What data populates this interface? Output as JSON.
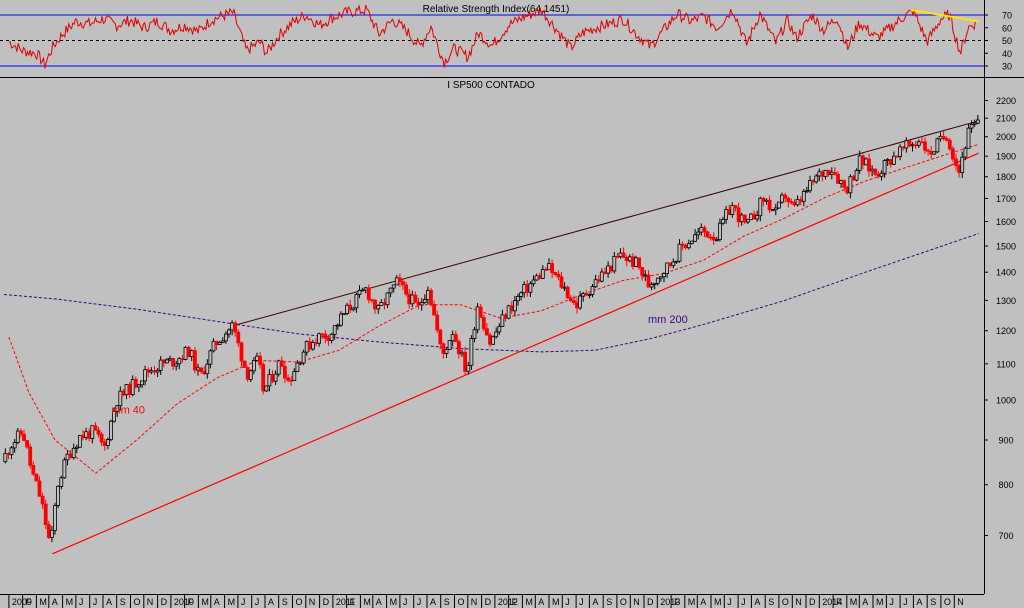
{
  "chart_data": [
    {
      "type": "line",
      "title": "Relative Strength Index(64.1451)",
      "ylim": [
        25,
        80
      ],
      "y_ticks": [
        30,
        40,
        50,
        60,
        70
      ],
      "upper_band": 70,
      "mid_band": 50,
      "lower_band": 30,
      "series": [
        {
          "values": [
            {
              "x": "2008-12-01",
              "y": 49
            },
            {
              "x": "2009-01-01",
              "y": 42
            },
            {
              "x": "2009-02-01",
              "y": 40
            },
            {
              "x": "2009-02-20",
              "y": 31
            },
            {
              "x": "2009-03-10",
              "y": 45
            },
            {
              "x": "2009-04-01",
              "y": 55
            },
            {
              "x": "2009-05-01",
              "y": 65
            },
            {
              "x": "2009-06-01",
              "y": 63
            },
            {
              "x": "2009-07-01",
              "y": 67
            },
            {
              "x": "2009-08-01",
              "y": 62
            },
            {
              "x": "2009-09-01",
              "y": 66
            },
            {
              "x": "2009-10-01",
              "y": 60
            },
            {
              "x": "2009-11-01",
              "y": 65
            },
            {
              "x": "2009-12-01",
              "y": 58
            },
            {
              "x": "2010-01-01",
              "y": 62
            },
            {
              "x": "2010-02-01",
              "y": 57
            },
            {
              "x": "2010-03-01",
              "y": 66
            },
            {
              "x": "2010-04-20",
              "y": 72
            },
            {
              "x": "2010-05-20",
              "y": 42
            },
            {
              "x": "2010-06-20",
              "y": 49
            },
            {
              "x": "2010-07-05",
              "y": 40
            },
            {
              "x": "2010-08-01",
              "y": 54
            },
            {
              "x": "2010-09-01",
              "y": 64
            },
            {
              "x": "2010-10-01",
              "y": 70
            },
            {
              "x": "2010-11-01",
              "y": 62
            },
            {
              "x": "2010-12-01",
              "y": 68
            },
            {
              "x": "2011-01-01",
              "y": 72
            },
            {
              "x": "2011-02-15",
              "y": 74
            },
            {
              "x": "2011-03-15",
              "y": 55
            },
            {
              "x": "2011-04-15",
              "y": 66
            },
            {
              "x": "2011-05-15",
              "y": 58
            },
            {
              "x": "2011-06-15",
              "y": 45
            },
            {
              "x": "2011-07-10",
              "y": 61
            },
            {
              "x": "2011-08-08",
              "y": 33
            },
            {
              "x": "2011-09-01",
              "y": 44
            },
            {
              "x": "2011-10-01",
              "y": 37
            },
            {
              "x": "2011-10-25",
              "y": 56
            },
            {
              "x": "2011-11-25",
              "y": 46
            },
            {
              "x": "2012-01-01",
              "y": 62
            },
            {
              "x": "2012-02-01",
              "y": 68
            },
            {
              "x": "2012-03-15",
              "y": 74
            },
            {
              "x": "2012-04-15",
              "y": 60
            },
            {
              "x": "2012-05-20",
              "y": 44
            },
            {
              "x": "2012-06-15",
              "y": 56
            },
            {
              "x": "2012-07-15",
              "y": 60
            },
            {
              "x": "2012-08-15",
              "y": 63
            },
            {
              "x": "2012-09-15",
              "y": 67
            },
            {
              "x": "2012-10-15",
              "y": 55
            },
            {
              "x": "2012-11-15",
              "y": 45
            },
            {
              "x": "2012-12-15",
              "y": 58
            },
            {
              "x": "2013-01-15",
              "y": 71
            },
            {
              "x": "2013-02-15",
              "y": 65
            },
            {
              "x": "2013-03-15",
              "y": 69
            },
            {
              "x": "2013-04-15",
              "y": 60
            },
            {
              "x": "2013-05-20",
              "y": 75
            },
            {
              "x": "2013-06-20",
              "y": 47
            },
            {
              "x": "2013-07-20",
              "y": 71
            },
            {
              "x": "2013-08-25",
              "y": 48
            },
            {
              "x": "2013-09-20",
              "y": 66
            },
            {
              "x": "2013-10-10",
              "y": 52
            },
            {
              "x": "2013-11-15",
              "y": 70
            },
            {
              "x": "2013-12-10",
              "y": 58
            },
            {
              "x": "2014-01-10",
              "y": 68
            },
            {
              "x": "2014-02-03",
              "y": 44
            },
            {
              "x": "2014-03-01",
              "y": 64
            },
            {
              "x": "2014-04-10",
              "y": 52
            },
            {
              "x": "2014-05-10",
              "y": 60
            },
            {
              "x": "2014-06-10",
              "y": 69
            },
            {
              "x": "2014-07-01",
              "y": 73
            },
            {
              "x": "2014-08-01",
              "y": 49
            },
            {
              "x": "2014-09-01",
              "y": 67
            },
            {
              "x": "2014-09-20",
              "y": 70
            },
            {
              "x": "2014-10-15",
              "y": 40
            },
            {
              "x": "2014-11-01",
              "y": 60
            },
            {
              "x": "2014-11-20",
              "y": 64
            }
          ]
        }
      ],
      "trendline": {
        "start": {
          "x": "2014-06-25",
          "y": 74
        },
        "end": {
          "x": "2014-11-25",
          "y": 65
        },
        "color": "#ffe600"
      },
      "colors": {
        "line": "#e00000",
        "band": "#0000ff",
        "mid": "#000000"
      }
    },
    {
      "type": "candlestick",
      "title": "I SP500 CONTADO",
      "scale": "log",
      "ylim": [
        600,
        2250
      ],
      "y_ticks": [
        700,
        800,
        900,
        1000,
        1100,
        1200,
        1300,
        1400,
        1500,
        1600,
        1700,
        1800,
        1900,
        2000,
        2100,
        2200
      ],
      "x_ticks": [
        "N",
        "2009",
        "F",
        "M",
        "A",
        "M",
        "J",
        "J",
        "A",
        "S",
        "O",
        "N",
        "D",
        "2010",
        "F",
        "M",
        "A",
        "M",
        "J",
        "J",
        "A",
        "S",
        "O",
        "N",
        "D",
        "2011",
        "F",
        "M",
        "A",
        "M",
        "J",
        "J",
        "A",
        "S",
        "O",
        "N",
        "D",
        "2012",
        "F",
        "M",
        "A",
        "M",
        "J",
        "J",
        "A",
        "S",
        "O",
        "N",
        "D",
        "2013",
        "F",
        "M",
        "A",
        "M",
        "J",
        "J",
        "A",
        "S",
        "O",
        "N",
        "D",
        "2014",
        "F",
        "M",
        "A",
        "M",
        "J",
        "J",
        "A",
        "S",
        "O",
        "N"
      ],
      "price_path": [
        {
          "x": "2008-11-20",
          "y": 850
        },
        {
          "x": "2008-12-10",
          "y": 890
        },
        {
          "x": "2009-01-05",
          "y": 920
        },
        {
          "x": "2009-01-25",
          "y": 830
        },
        {
          "x": "2009-02-15",
          "y": 770
        },
        {
          "x": "2009-03-09",
          "y": 677
        },
        {
          "x": "2009-03-25",
          "y": 800
        },
        {
          "x": "2009-04-15",
          "y": 860
        },
        {
          "x": "2009-05-15",
          "y": 910
        },
        {
          "x": "2009-06-15",
          "y": 920
        },
        {
          "x": "2009-07-08",
          "y": 880
        },
        {
          "x": "2009-08-05",
          "y": 1000
        },
        {
          "x": "2009-09-10",
          "y": 1040
        },
        {
          "x": "2009-10-15",
          "y": 1080
        },
        {
          "x": "2009-11-15",
          "y": 1100
        },
        {
          "x": "2009-12-15",
          "y": 1110
        },
        {
          "x": "2010-01-15",
          "y": 1140
        },
        {
          "x": "2010-02-08",
          "y": 1060
        },
        {
          "x": "2010-03-15",
          "y": 1160
        },
        {
          "x": "2010-04-23",
          "y": 1217
        },
        {
          "x": "2010-05-25",
          "y": 1070
        },
        {
          "x": "2010-06-20",
          "y": 1110
        },
        {
          "x": "2010-07-02",
          "y": 1022
        },
        {
          "x": "2010-08-10",
          "y": 1110
        },
        {
          "x": "2010-08-27",
          "y": 1050
        },
        {
          "x": "2010-09-30",
          "y": 1140
        },
        {
          "x": "2010-10-30",
          "y": 1180
        },
        {
          "x": "2010-11-30",
          "y": 1190
        },
        {
          "x": "2010-12-31",
          "y": 1257
        },
        {
          "x": "2011-02-18",
          "y": 1340
        },
        {
          "x": "2011-03-16",
          "y": 1260
        },
        {
          "x": "2011-04-29",
          "y": 1363
        },
        {
          "x": "2011-06-15",
          "y": 1270
        },
        {
          "x": "2011-07-07",
          "y": 1350
        },
        {
          "x": "2011-08-08",
          "y": 1120
        },
        {
          "x": "2011-09-01",
          "y": 1200
        },
        {
          "x": "2011-10-03",
          "y": 1075
        },
        {
          "x": "2011-10-27",
          "y": 1285
        },
        {
          "x": "2011-11-25",
          "y": 1160
        },
        {
          "x": "2011-12-30",
          "y": 1257
        },
        {
          "x": "2012-02-01",
          "y": 1320
        },
        {
          "x": "2012-04-02",
          "y": 1420
        },
        {
          "x": "2012-05-15",
          "y": 1330
        },
        {
          "x": "2012-06-04",
          "y": 1280
        },
        {
          "x": "2012-07-15",
          "y": 1360
        },
        {
          "x": "2012-08-15",
          "y": 1410
        },
        {
          "x": "2012-09-14",
          "y": 1465
        },
        {
          "x": "2012-10-20",
          "y": 1430
        },
        {
          "x": "2012-11-15",
          "y": 1355
        },
        {
          "x": "2012-12-31",
          "y": 1426
        },
        {
          "x": "2013-01-31",
          "y": 1500
        },
        {
          "x": "2013-03-15",
          "y": 1560
        },
        {
          "x": "2013-04-18",
          "y": 1540
        },
        {
          "x": "2013-05-21",
          "y": 1670
        },
        {
          "x": "2013-06-24",
          "y": 1575
        },
        {
          "x": "2013-08-02",
          "y": 1700
        },
        {
          "x": "2013-08-30",
          "y": 1630
        },
        {
          "x": "2013-09-18",
          "y": 1720
        },
        {
          "x": "2013-10-08",
          "y": 1650
        },
        {
          "x": "2013-11-30",
          "y": 1800
        },
        {
          "x": "2013-12-31",
          "y": 1848
        },
        {
          "x": "2014-02-03",
          "y": 1740
        },
        {
          "x": "2014-03-07",
          "y": 1880
        },
        {
          "x": "2014-04-11",
          "y": 1815
        },
        {
          "x": "2014-05-30",
          "y": 1920
        },
        {
          "x": "2014-07-24",
          "y": 1990
        },
        {
          "x": "2014-08-07",
          "y": 1905
        },
        {
          "x": "2014-09-18",
          "y": 2015
        },
        {
          "x": "2014-10-15",
          "y": 1820
        },
        {
          "x": "2014-11-05",
          "y": 2020
        },
        {
          "x": "2014-11-25",
          "y": 2070
        }
      ],
      "ma40": [
        {
          "x": "2008-12-01",
          "y": 1180
        },
        {
          "x": "2009-01-15",
          "y": 1020
        },
        {
          "x": "2009-03-15",
          "y": 900
        },
        {
          "x": "2009-06-15",
          "y": 825
        },
        {
          "x": "2009-09-15",
          "y": 900
        },
        {
          "x": "2009-12-15",
          "y": 990
        },
        {
          "x": "2010-03-15",
          "y": 1060
        },
        {
          "x": "2010-06-15",
          "y": 1110
        },
        {
          "x": "2010-09-15",
          "y": 1105
        },
        {
          "x": "2010-12-15",
          "y": 1140
        },
        {
          "x": "2011-03-15",
          "y": 1215
        },
        {
          "x": "2011-06-15",
          "y": 1285
        },
        {
          "x": "2011-09-15",
          "y": 1285
        },
        {
          "x": "2011-12-15",
          "y": 1240
        },
        {
          "x": "2012-03-15",
          "y": 1265
        },
        {
          "x": "2012-06-15",
          "y": 1320
        },
        {
          "x": "2012-09-15",
          "y": 1370
        },
        {
          "x": "2012-12-15",
          "y": 1395
        },
        {
          "x": "2013-03-15",
          "y": 1445
        },
        {
          "x": "2013-06-15",
          "y": 1540
        },
        {
          "x": "2013-09-15",
          "y": 1615
        },
        {
          "x": "2013-12-15",
          "y": 1705
        },
        {
          "x": "2014-03-15",
          "y": 1780
        },
        {
          "x": "2014-06-15",
          "y": 1845
        },
        {
          "x": "2014-09-15",
          "y": 1910
        },
        {
          "x": "2014-11-25",
          "y": 1960
        }
      ],
      "ma200": [
        {
          "x": "2008-11-20",
          "y": 1320
        },
        {
          "x": "2009-03-15",
          "y": 1305
        },
        {
          "x": "2009-09-15",
          "y": 1270
        },
        {
          "x": "2010-03-15",
          "y": 1230
        },
        {
          "x": "2010-09-15",
          "y": 1190
        },
        {
          "x": "2011-03-15",
          "y": 1165
        },
        {
          "x": "2011-09-15",
          "y": 1145
        },
        {
          "x": "2012-03-15",
          "y": 1135
        },
        {
          "x": "2012-07-15",
          "y": 1140
        },
        {
          "x": "2012-11-15",
          "y": 1175
        },
        {
          "x": "2013-03-15",
          "y": 1220
        },
        {
          "x": "2013-09-15",
          "y": 1300
        },
        {
          "x": "2014-03-15",
          "y": 1400
        },
        {
          "x": "2014-11-25",
          "y": 1550
        }
      ],
      "upper_trendline": {
        "start": {
          "x": "2010-04-23",
          "y": 1217
        },
        "end": {
          "x": "2014-11-25",
          "y": 2085
        }
      },
      "lower_trendline": {
        "start": {
          "x": "2009-03-09",
          "y": 667
        },
        "end": {
          "x": "2014-11-25",
          "y": 1915
        }
      },
      "annotations": [
        {
          "text": "mm 40",
          "x": "2009-07-20",
          "y": 965,
          "color": "#ff0000"
        },
        {
          "text": "mm 200",
          "x": "2012-11-10",
          "y": 1225,
          "color": "#3d0080"
        }
      ],
      "colors": {
        "up": "#000000",
        "down": "#ff0000",
        "ma40": "#ff0000",
        "ma200": "#3d0080",
        "upper_trendline": "#3a0000",
        "lower_trendline": "#ff0000"
      }
    }
  ]
}
